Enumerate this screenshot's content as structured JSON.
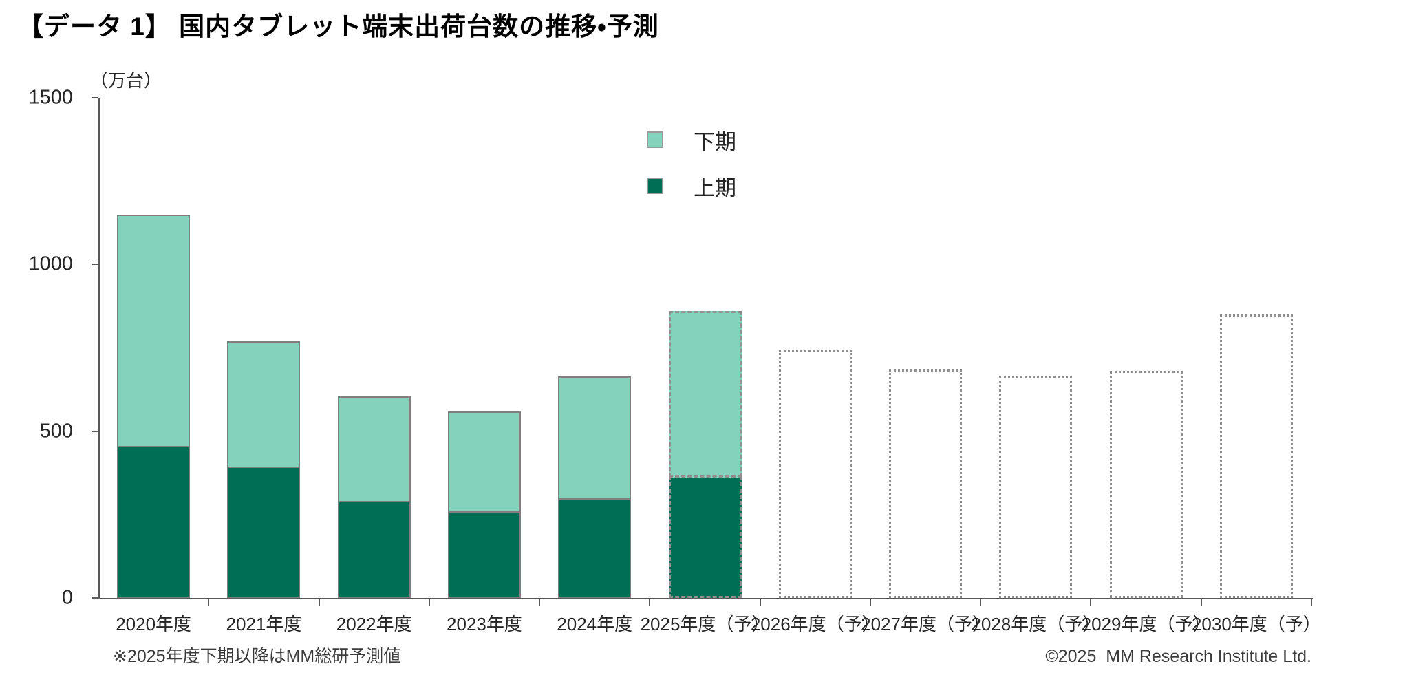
{
  "title": "【データ 1】 国内タブレット端末出荷台数の推移・予測",
  "footnote": "※2025年度下期以降はMM総研予測値",
  "copyright": "©2025  MM Research Institute Ltd.",
  "chart_data": {
    "type": "bar",
    "stacked": true,
    "title": "国内タブレット端末出荷台数の推移・予測",
    "unit_label": "（万台）",
    "ylim": [
      0,
      1500
    ],
    "y_ticks": [
      0,
      500,
      1000,
      1500
    ],
    "grid": false,
    "legend_position": "top-center",
    "legend": [
      {
        "name": "下期",
        "color": "#85D2BC"
      },
      {
        "name": "上期",
        "color": "#006E54"
      }
    ],
    "colors": {
      "second_half_light": "#85D2BC",
      "first_half_dark": "#006E54",
      "solid_bar_border": "#7F7F7F",
      "forecast_border": "#8F8F8F",
      "axis": "#595959"
    },
    "categories": [
      "2020年度",
      "2021年度",
      "2022年度",
      "2023年度",
      "2024年度",
      "2025年度（予）",
      "2026年度（予）",
      "2027年度（予）",
      "2028年度（予）",
      "2029年度（予）",
      "2030年度（予）"
    ],
    "series": [
      {
        "name": "上期",
        "values": [
          455,
          395,
          290,
          260,
          300,
          365,
          null,
          null,
          null,
          null,
          null
        ]
      },
      {
        "name": "下期",
        "values": [
          695,
          375,
          315,
          300,
          365,
          495,
          null,
          null,
          null,
          null,
          null
        ]
      }
    ],
    "totals": [
      1150,
      770,
      605,
      560,
      665,
      860,
      745,
      685,
      665,
      680,
      850
    ],
    "bar_styles": [
      "actual",
      "actual",
      "actual",
      "actual",
      "actual",
      "forecast-stacked",
      "forecast-outline",
      "forecast-outline",
      "forecast-outline",
      "forecast-outline",
      "forecast-outline"
    ]
  }
}
